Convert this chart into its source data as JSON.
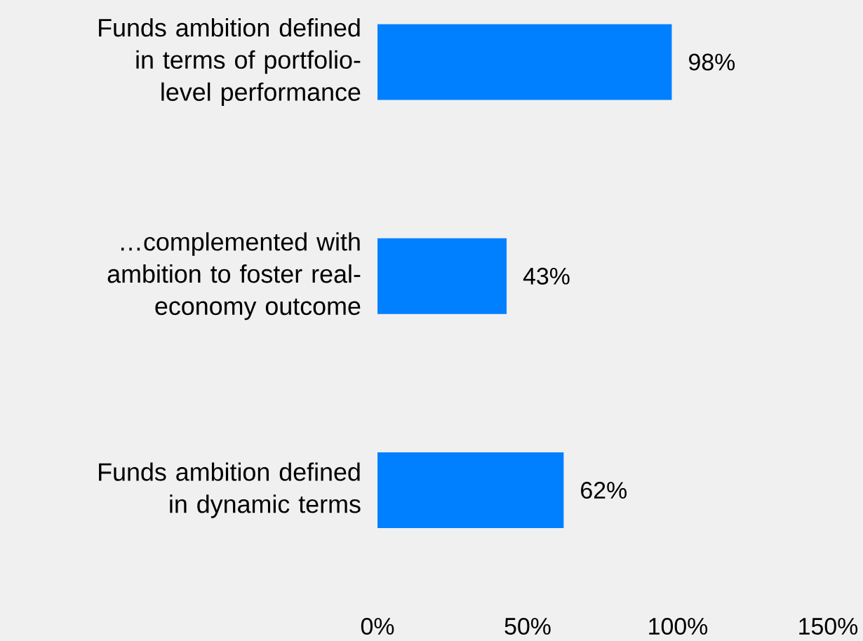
{
  "chart_data": {
    "type": "bar",
    "orientation": "horizontal",
    "categories": [
      "Funds ambition defined in terms of portfolio-level performance",
      "…complemented with ambition to foster real-economy outcome",
      "Funds ambition defined in dynamic terms"
    ],
    "values": [
      98,
      43,
      62
    ],
    "value_labels": [
      "98%",
      "43%",
      "62%"
    ],
    "color": "#0080ff",
    "xlim": [
      0,
      150
    ],
    "xticks": [
      {
        "value": 0,
        "label": "0%"
      },
      {
        "value": 50,
        "label": "50%"
      },
      {
        "value": 100,
        "label": "100%"
      },
      {
        "value": 150,
        "label": "150%"
      }
    ],
    "grid": false
  }
}
